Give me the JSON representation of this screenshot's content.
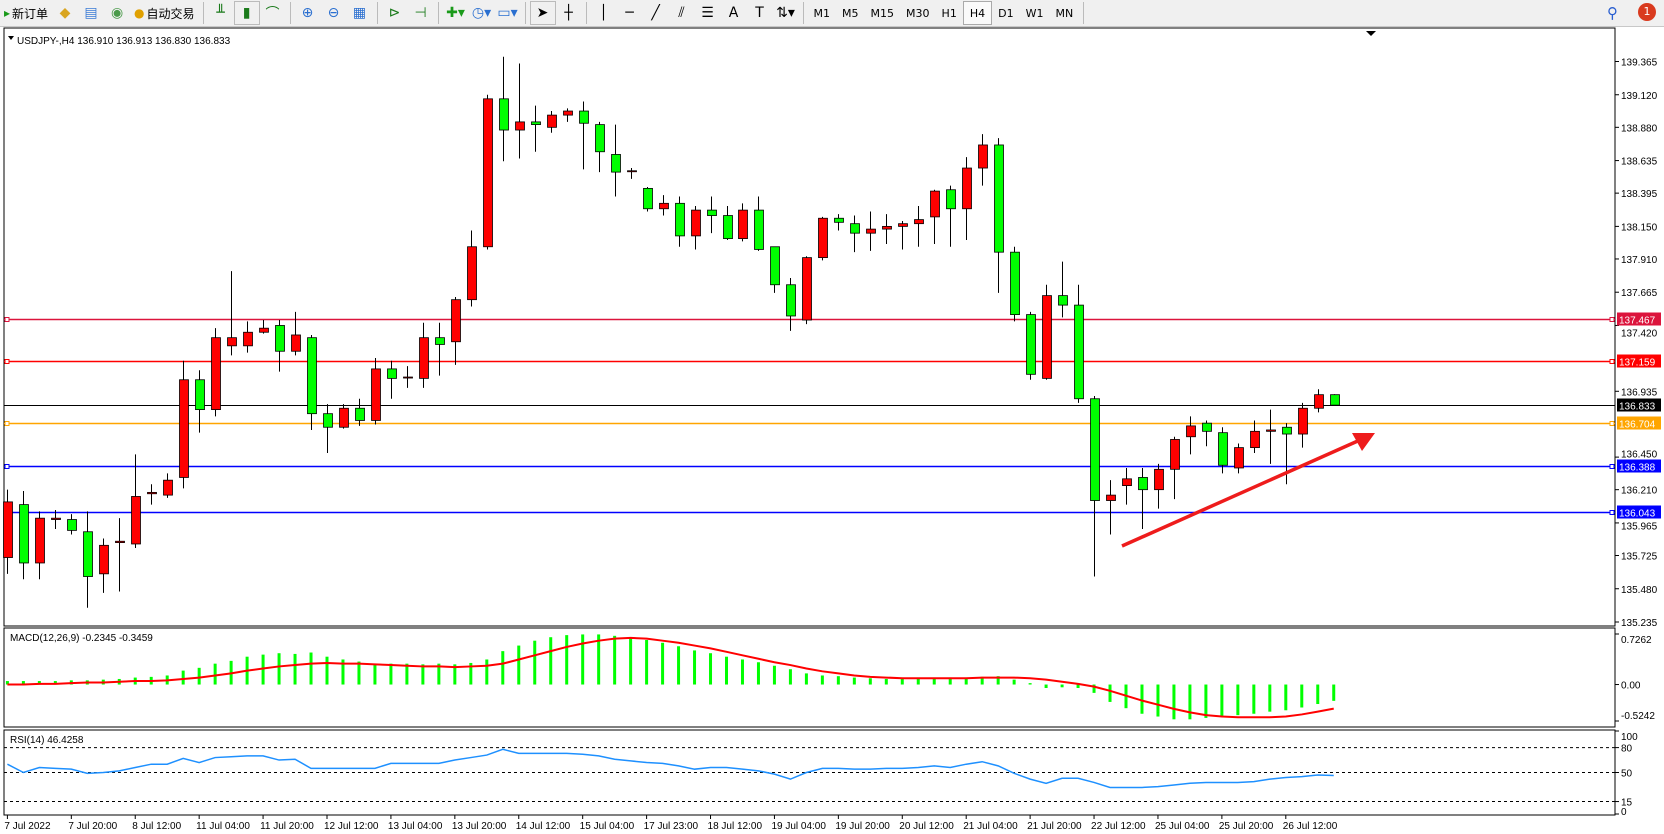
{
  "toolbar": {
    "new_order": "新订单",
    "auto_trading": "自动交易",
    "timeframes": [
      "M1",
      "M5",
      "M15",
      "M30",
      "H1",
      "H4",
      "D1",
      "W1",
      "MN"
    ],
    "active_timeframe": "H4",
    "notifications": "1"
  },
  "chart": {
    "header": "USDJPY-,H4  136.910 136.913 136.830 136.833",
    "bull_color": "#ff0000",
    "bear_color": "#00ff00",
    "price_ticks": [
      "139.365",
      "139.120",
      "138.880",
      "138.635",
      "138.395",
      "138.150",
      "137.910",
      "137.665",
      "137.420",
      "136.935",
      "136.450",
      "136.210",
      "135.965",
      "135.725",
      "135.480",
      "135.235"
    ],
    "levels": [
      {
        "price": "137.467",
        "color": "#dc143c"
      },
      {
        "price": "137.159",
        "color": "#ff0000"
      },
      {
        "price": "136.833",
        "color": "#000000"
      },
      {
        "price": "136.704",
        "color": "#ffa500"
      },
      {
        "price": "136.388",
        "color": "#0000ff"
      },
      {
        "price": "136.043",
        "color": "#0000ff"
      }
    ],
    "time_labels": [
      "7 Jul 2022",
      "7 Jul 20:00",
      "8 Jul 12:00",
      "11 Jul 04:00",
      "11 Jul 20:00",
      "12 Jul 12:00",
      "13 Jul 04:00",
      "13 Jul 20:00",
      "14 Jul 12:00",
      "15 Jul 04:00",
      "17 Jul 23:00",
      "18 Jul 12:00",
      "19 Jul 04:00",
      "19 Jul 20:00",
      "20 Jul 12:00",
      "21 Jul 04:00",
      "21 Jul 20:00",
      "22 Jul 12:00",
      "25 Jul 04:00",
      "25 Jul 20:00",
      "26 Jul 12:00"
    ],
    "macd": {
      "label": "MACD(12,26,9) -0.2345 -0.3459",
      "ticks": [
        "0.7262",
        "0.00",
        "-0.5242"
      ],
      "histogram_color": "#00ff00",
      "signal_color": "#ff0000"
    },
    "rsi": {
      "label": "RSI(14) 46.4258",
      "ticks": [
        "100",
        "80",
        "50",
        "15",
        "0"
      ],
      "color": "#1e90ff"
    }
  },
  "chart_data": {
    "type": "candlestick",
    "symbol": "USDJPY-",
    "timeframe": "H4",
    "ylim": [
      135.235,
      139.365
    ],
    "ohlc": [
      [
        135.71,
        136.21,
        135.59,
        136.12
      ],
      [
        136.1,
        136.2,
        135.55,
        135.67
      ],
      [
        135.67,
        136.05,
        135.55,
        136.0
      ],
      [
        135.99,
        136.06,
        135.92,
        136.0
      ],
      [
        135.99,
        136.03,
        135.88,
        135.91
      ],
      [
        135.9,
        136.05,
        135.34,
        135.57
      ],
      [
        135.59,
        135.85,
        135.45,
        135.8
      ],
      [
        135.82,
        136.0,
        135.46,
        135.83
      ],
      [
        135.81,
        136.47,
        135.78,
        136.16
      ],
      [
        136.18,
        136.25,
        136.1,
        136.19
      ],
      [
        136.17,
        136.33,
        136.15,
        136.28
      ],
      [
        136.3,
        137.16,
        136.22,
        137.02
      ],
      [
        137.02,
        137.09,
        136.63,
        136.8
      ],
      [
        136.8,
        137.4,
        136.75,
        137.33
      ],
      [
        137.27,
        137.82,
        137.2,
        137.33
      ],
      [
        137.27,
        137.45,
        137.22,
        137.37
      ],
      [
        137.37,
        137.46,
        137.36,
        137.4
      ],
      [
        137.42,
        137.46,
        137.08,
        137.23
      ],
      [
        137.23,
        137.52,
        137.2,
        137.35
      ],
      [
        137.33,
        137.35,
        136.65,
        136.77
      ],
      [
        136.77,
        136.84,
        136.48,
        136.67
      ],
      [
        136.67,
        136.84,
        136.66,
        136.81
      ],
      [
        136.81,
        136.88,
        136.68,
        136.72
      ],
      [
        136.72,
        137.18,
        136.69,
        137.1
      ],
      [
        137.1,
        137.16,
        136.88,
        137.03
      ],
      [
        137.04,
        137.12,
        136.96,
        137.04
      ],
      [
        137.03,
        137.44,
        136.96,
        137.33
      ],
      [
        137.33,
        137.44,
        137.05,
        137.28
      ],
      [
        137.3,
        137.63,
        137.13,
        137.61
      ],
      [
        137.61,
        138.12,
        137.56,
        138.0
      ],
      [
        138.0,
        139.12,
        137.98,
        139.09
      ],
      [
        139.09,
        139.4,
        138.63,
        138.86
      ],
      [
        138.86,
        139.35,
        138.65,
        138.92
      ],
      [
        138.92,
        139.04,
        138.7,
        138.9
      ],
      [
        138.88,
        139.0,
        138.84,
        138.97
      ],
      [
        138.97,
        139.02,
        138.92,
        139.0
      ],
      [
        139.0,
        139.07,
        138.57,
        138.91
      ],
      [
        138.9,
        138.92,
        138.55,
        138.7
      ],
      [
        138.68,
        138.9,
        138.37,
        138.55
      ],
      [
        138.56,
        138.58,
        138.5,
        138.56
      ],
      [
        138.43,
        138.44,
        138.26,
        138.28
      ],
      [
        138.28,
        138.38,
        138.23,
        138.32
      ],
      [
        138.32,
        138.37,
        138.0,
        138.08
      ],
      [
        138.08,
        138.3,
        137.98,
        138.27
      ],
      [
        138.27,
        138.37,
        138.1,
        138.23
      ],
      [
        138.23,
        138.3,
        138.05,
        138.06
      ],
      [
        138.06,
        138.32,
        138.04,
        138.27
      ],
      [
        138.27,
        138.37,
        137.97,
        137.98
      ],
      [
        138.0,
        138.0,
        137.66,
        137.72
      ],
      [
        137.72,
        137.77,
        137.38,
        137.49
      ],
      [
        137.46,
        137.93,
        137.43,
        137.92
      ],
      [
        137.92,
        138.22,
        137.9,
        138.21
      ],
      [
        138.21,
        138.24,
        138.12,
        138.18
      ],
      [
        138.17,
        138.23,
        137.96,
        138.1
      ],
      [
        138.1,
        138.26,
        137.97,
        138.13
      ],
      [
        138.13,
        138.24,
        138.02,
        138.15
      ],
      [
        138.15,
        138.19,
        137.98,
        138.17
      ],
      [
        138.17,
        138.3,
        138.0,
        138.2
      ],
      [
        138.22,
        138.42,
        138.02,
        138.41
      ],
      [
        138.42,
        138.45,
        138.0,
        138.28
      ],
      [
        138.28,
        138.66,
        138.05,
        138.58
      ],
      [
        138.58,
        138.83,
        138.45,
        138.75
      ],
      [
        138.75,
        138.8,
        137.66,
        137.96
      ],
      [
        137.96,
        138.0,
        137.45,
        137.5
      ],
      [
        137.5,
        137.52,
        137.02,
        137.06
      ],
      [
        137.03,
        137.72,
        137.02,
        137.64
      ],
      [
        137.64,
        137.89,
        137.48,
        137.57
      ],
      [
        137.57,
        137.72,
        136.85,
        136.88
      ],
      [
        136.88,
        136.9,
        135.57,
        136.13
      ],
      [
        136.13,
        136.28,
        135.88,
        136.17
      ],
      [
        136.24,
        136.37,
        136.1,
        136.29
      ],
      [
        136.3,
        136.37,
        135.92,
        136.21
      ],
      [
        136.21,
        136.4,
        136.07,
        136.36
      ],
      [
        136.36,
        136.6,
        136.14,
        136.58
      ],
      [
        136.6,
        136.75,
        136.47,
        136.68
      ],
      [
        136.7,
        136.72,
        136.53,
        136.64
      ],
      [
        136.63,
        136.67,
        136.33,
        136.39
      ],
      [
        136.37,
        136.55,
        136.33,
        136.52
      ],
      [
        136.52,
        136.72,
        136.48,
        136.64
      ],
      [
        136.64,
        136.8,
        136.4,
        136.65
      ],
      [
        136.67,
        136.7,
        136.25,
        136.62
      ],
      [
        136.62,
        136.85,
        136.52,
        136.81
      ],
      [
        136.81,
        136.95,
        136.78,
        136.91
      ],
      [
        136.91,
        136.913,
        136.83,
        136.833
      ]
    ],
    "macd_histogram": [
      0.05,
      0.05,
      0.05,
      0.05,
      0.06,
      0.06,
      0.07,
      0.08,
      0.1,
      0.11,
      0.13,
      0.2,
      0.24,
      0.3,
      0.34,
      0.4,
      0.43,
      0.45,
      0.44,
      0.46,
      0.4,
      0.36,
      0.33,
      0.3,
      0.3,
      0.3,
      0.29,
      0.3,
      0.29,
      0.31,
      0.36,
      0.48,
      0.56,
      0.63,
      0.68,
      0.71,
      0.72,
      0.72,
      0.7,
      0.68,
      0.64,
      0.6,
      0.55,
      0.49,
      0.45,
      0.4,
      0.36,
      0.32,
      0.27,
      0.22,
      0.16,
      0.13,
      0.12,
      0.1,
      0.09,
      0.08,
      0.08,
      0.08,
      0.08,
      0.09,
      0.1,
      0.11,
      0.12,
      0.07,
      0.02,
      -0.05,
      -0.04,
      -0.05,
      -0.12,
      -0.25,
      -0.34,
      -0.42,
      -0.46,
      -0.5,
      -0.5,
      -0.48,
      -0.46,
      -0.44,
      -0.42,
      -0.39,
      -0.37,
      -0.33,
      -0.28,
      -0.2345
    ],
    "macd_signal": [
      0.0,
      0.0,
      0.01,
      0.01,
      0.02,
      0.03,
      0.03,
      0.04,
      0.05,
      0.05,
      0.06,
      0.08,
      0.1,
      0.13,
      0.16,
      0.2,
      0.23,
      0.26,
      0.28,
      0.3,
      0.31,
      0.3,
      0.3,
      0.29,
      0.28,
      0.27,
      0.26,
      0.26,
      0.25,
      0.26,
      0.27,
      0.3,
      0.36,
      0.42,
      0.48,
      0.54,
      0.59,
      0.63,
      0.66,
      0.67,
      0.66,
      0.63,
      0.6,
      0.56,
      0.52,
      0.47,
      0.42,
      0.37,
      0.32,
      0.28,
      0.23,
      0.19,
      0.16,
      0.13,
      0.11,
      0.1,
      0.09,
      0.09,
      0.09,
      0.09,
      0.09,
      0.1,
      0.1,
      0.1,
      0.09,
      0.07,
      0.04,
      0.01,
      -0.03,
      -0.09,
      -0.16,
      -0.23,
      -0.29,
      -0.35,
      -0.4,
      -0.44,
      -0.46,
      -0.47,
      -0.47,
      -0.47,
      -0.46,
      -0.43,
      -0.39,
      -0.3459
    ],
    "macd_ylim": [
      -0.5242,
      0.7262
    ],
    "rsi": [
      60,
      50,
      56,
      55,
      54,
      49,
      50,
      52,
      56,
      60,
      60,
      67,
      62,
      68,
      69,
      70,
      70,
      65,
      66,
      55,
      55,
      55,
      55,
      55,
      61,
      61,
      61,
      61,
      65,
      68,
      71,
      78,
      73,
      73,
      73,
      73,
      72,
      70,
      66,
      64,
      62,
      61,
      58,
      54,
      56,
      56,
      54,
      52,
      48,
      42,
      50,
      55,
      55,
      54,
      54,
      55,
      55,
      56,
      58,
      56,
      60,
      63,
      58,
      49,
      42,
      37,
      43,
      43,
      38,
      32,
      32,
      32,
      33,
      35,
      37,
      38,
      38,
      38,
      39,
      42,
      44,
      45,
      47,
      46.4258
    ],
    "rsi_levels": [
      80,
      50,
      15
    ]
  }
}
